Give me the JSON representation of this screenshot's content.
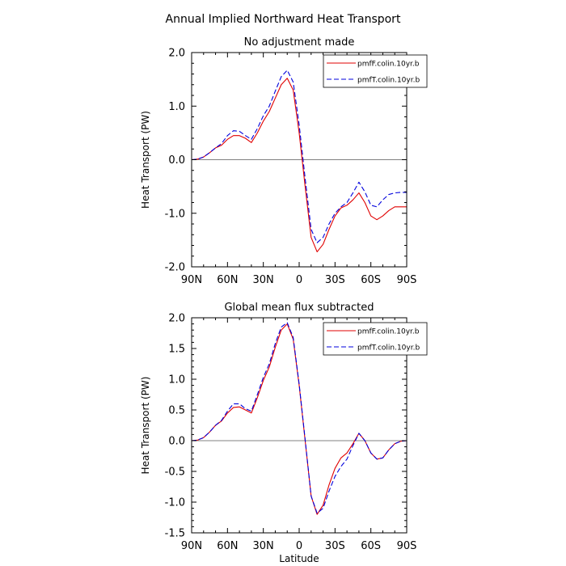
{
  "figure_title": "Annual Implied Northward Heat Transport",
  "colors": {
    "red": "#e00000",
    "blue": "#0000dd",
    "zero_line": "#808080"
  },
  "chart_data": [
    {
      "type": "line",
      "title": "No adjustment made",
      "xlabel": "",
      "ylabel": "Heat Transport (PW)",
      "xlim": [
        90,
        -90
      ],
      "ylim": [
        -2.0,
        2.0
      ],
      "x_ticks": [
        90,
        60,
        30,
        0,
        -30,
        -60,
        -90
      ],
      "x_tick_labels": [
        "90N",
        "60N",
        "30N",
        "0",
        "30S",
        "60S",
        "90S"
      ],
      "y_ticks": [
        2.0,
        1.0,
        0.0,
        -1.0,
        -2.0
      ],
      "y_tick_labels": [
        "2.0",
        "1.0",
        "0.0",
        "-1.0",
        "-2.0"
      ],
      "zero_line": true,
      "legend": "top-right",
      "series": [
        {
          "name": "pmfF.colin.10yr.b",
          "color": "red",
          "dash": "solid",
          "x": [
            90,
            85,
            80,
            75,
            70,
            65,
            60,
            55,
            50,
            45,
            40,
            35,
            30,
            25,
            20,
            15,
            10,
            5,
            0,
            -5,
            -10,
            -15,
            -20,
            -25,
            -30,
            -35,
            -40,
            -45,
            -50,
            -55,
            -60,
            -65,
            -70,
            -75,
            -80,
            -85,
            -90
          ],
          "y": [
            0.0,
            0.01,
            0.05,
            0.13,
            0.22,
            0.27,
            0.38,
            0.45,
            0.45,
            0.4,
            0.32,
            0.5,
            0.72,
            0.9,
            1.15,
            1.4,
            1.52,
            1.3,
            0.5,
            -0.5,
            -1.45,
            -1.72,
            -1.58,
            -1.3,
            -1.05,
            -0.9,
            -0.85,
            -0.75,
            -0.62,
            -0.8,
            -1.05,
            -1.12,
            -1.05,
            -0.95,
            -0.88,
            -0.88,
            -0.88
          ]
        },
        {
          "name": "pmfT.colin.10yr.b",
          "color": "blue",
          "dash": "dashed",
          "x": [
            90,
            85,
            80,
            75,
            70,
            65,
            60,
            55,
            50,
            45,
            40,
            35,
            30,
            25,
            20,
            15,
            10,
            5,
            0,
            -5,
            -10,
            -15,
            -20,
            -25,
            -30,
            -35,
            -40,
            -45,
            -50,
            -55,
            -60,
            -65,
            -70,
            -75,
            -80,
            -85,
            -90
          ],
          "y": [
            0.0,
            0.01,
            0.05,
            0.13,
            0.22,
            0.3,
            0.45,
            0.54,
            0.53,
            0.45,
            0.38,
            0.58,
            0.82,
            1.0,
            1.28,
            1.55,
            1.67,
            1.45,
            0.65,
            -0.35,
            -1.3,
            -1.55,
            -1.45,
            -1.2,
            -1.0,
            -0.88,
            -0.8,
            -0.62,
            -0.42,
            -0.6,
            -0.85,
            -0.88,
            -0.75,
            -0.65,
            -0.62,
            -0.61,
            -0.61
          ]
        }
      ]
    },
    {
      "type": "line",
      "title": "Global mean flux subtracted",
      "xlabel": "Latitude",
      "ylabel": "Heat Transport (PW)",
      "xlim": [
        90,
        -90
      ],
      "ylim": [
        -1.5,
        2.0
      ],
      "x_ticks": [
        90,
        60,
        30,
        0,
        -30,
        -60,
        -90
      ],
      "x_tick_labels": [
        "90N",
        "60N",
        "30N",
        "0",
        "30S",
        "60S",
        "90S"
      ],
      "y_ticks": [
        2.0,
        1.5,
        1.0,
        0.5,
        0.0,
        -0.5,
        -1.0,
        -1.5
      ],
      "y_tick_labels": [
        "2.0",
        "1.5",
        "1.0",
        "0.5",
        "0.0",
        "-0.5",
        "-1.0",
        "-1.5"
      ],
      "zero_line": true,
      "legend": "top-right",
      "series": [
        {
          "name": "pmfF.colin.10yr.b",
          "color": "red",
          "dash": "solid",
          "x": [
            90,
            85,
            80,
            75,
            70,
            65,
            60,
            55,
            50,
            45,
            40,
            35,
            30,
            25,
            20,
            15,
            10,
            5,
            0,
            -5,
            -10,
            -15,
            -20,
            -25,
            -30,
            -35,
            -40,
            -45,
            -50,
            -55,
            -60,
            -65,
            -70,
            -75,
            -80,
            -85,
            -90
          ],
          "y": [
            0.0,
            0.01,
            0.05,
            0.14,
            0.25,
            0.32,
            0.45,
            0.54,
            0.55,
            0.5,
            0.45,
            0.7,
            0.98,
            1.2,
            1.52,
            1.8,
            1.9,
            1.65,
            0.9,
            0.0,
            -0.9,
            -1.2,
            -1.05,
            -0.72,
            -0.45,
            -0.28,
            -0.2,
            -0.05,
            0.12,
            0.0,
            -0.2,
            -0.3,
            -0.28,
            -0.15,
            -0.05,
            -0.01,
            0.0
          ]
        },
        {
          "name": "pmfT.colin.10yr.b",
          "color": "blue",
          "dash": "dashed",
          "x": [
            90,
            85,
            80,
            75,
            70,
            65,
            60,
            55,
            50,
            45,
            40,
            35,
            30,
            25,
            20,
            15,
            10,
            5,
            0,
            -5,
            -10,
            -15,
            -20,
            -25,
            -30,
            -35,
            -40,
            -45,
            -50,
            -55,
            -60,
            -65,
            -70,
            -75,
            -80,
            -85,
            -90
          ],
          "y": [
            0.0,
            0.01,
            0.05,
            0.14,
            0.25,
            0.33,
            0.48,
            0.6,
            0.6,
            0.52,
            0.48,
            0.75,
            1.03,
            1.25,
            1.58,
            1.85,
            1.92,
            1.68,
            0.92,
            0.02,
            -0.9,
            -1.18,
            -1.1,
            -0.82,
            -0.58,
            -0.42,
            -0.3,
            -0.08,
            0.12,
            0.0,
            -0.2,
            -0.3,
            -0.28,
            -0.15,
            -0.05,
            -0.01,
            0.0
          ]
        }
      ]
    }
  ]
}
